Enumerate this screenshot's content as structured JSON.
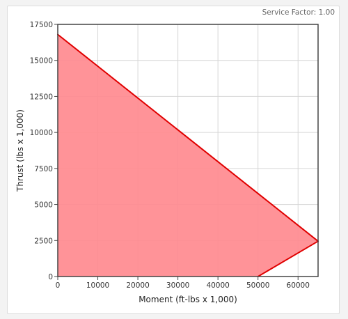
{
  "header": {
    "service_factor": "Service Factor: 1.00"
  },
  "chart_data": {
    "type": "area",
    "xlabel": "Moment (ft-lbs x 1,000)",
    "ylabel": "Thrust (lbs x 1,000)",
    "xlim": [
      0,
      65000
    ],
    "ylim": [
      0,
      17500
    ],
    "x_ticks": [
      0,
      10000,
      20000,
      30000,
      40000,
      50000,
      60000
    ],
    "y_ticks": [
      0,
      2500,
      5000,
      7500,
      10000,
      12500,
      15000,
      17500
    ],
    "grid": true,
    "polygon": [
      {
        "x": 0,
        "y": 16800
      },
      {
        "x": 65000,
        "y": 2450
      },
      {
        "x": 50000,
        "y": 0
      },
      {
        "x": 0,
        "y": 0
      }
    ],
    "boundary_lines": [
      {
        "from": {
          "x": 0,
          "y": 16800
        },
        "to": {
          "x": 65000,
          "y": 2450
        }
      },
      {
        "from": {
          "x": 50000,
          "y": 0
        },
        "to": {
          "x": 65000,
          "y": 2450
        }
      }
    ],
    "colors": {
      "fill": "#ff8a8f",
      "line": "#e00000",
      "grid": "#d6d6d6",
      "frame": "#444444"
    }
  }
}
